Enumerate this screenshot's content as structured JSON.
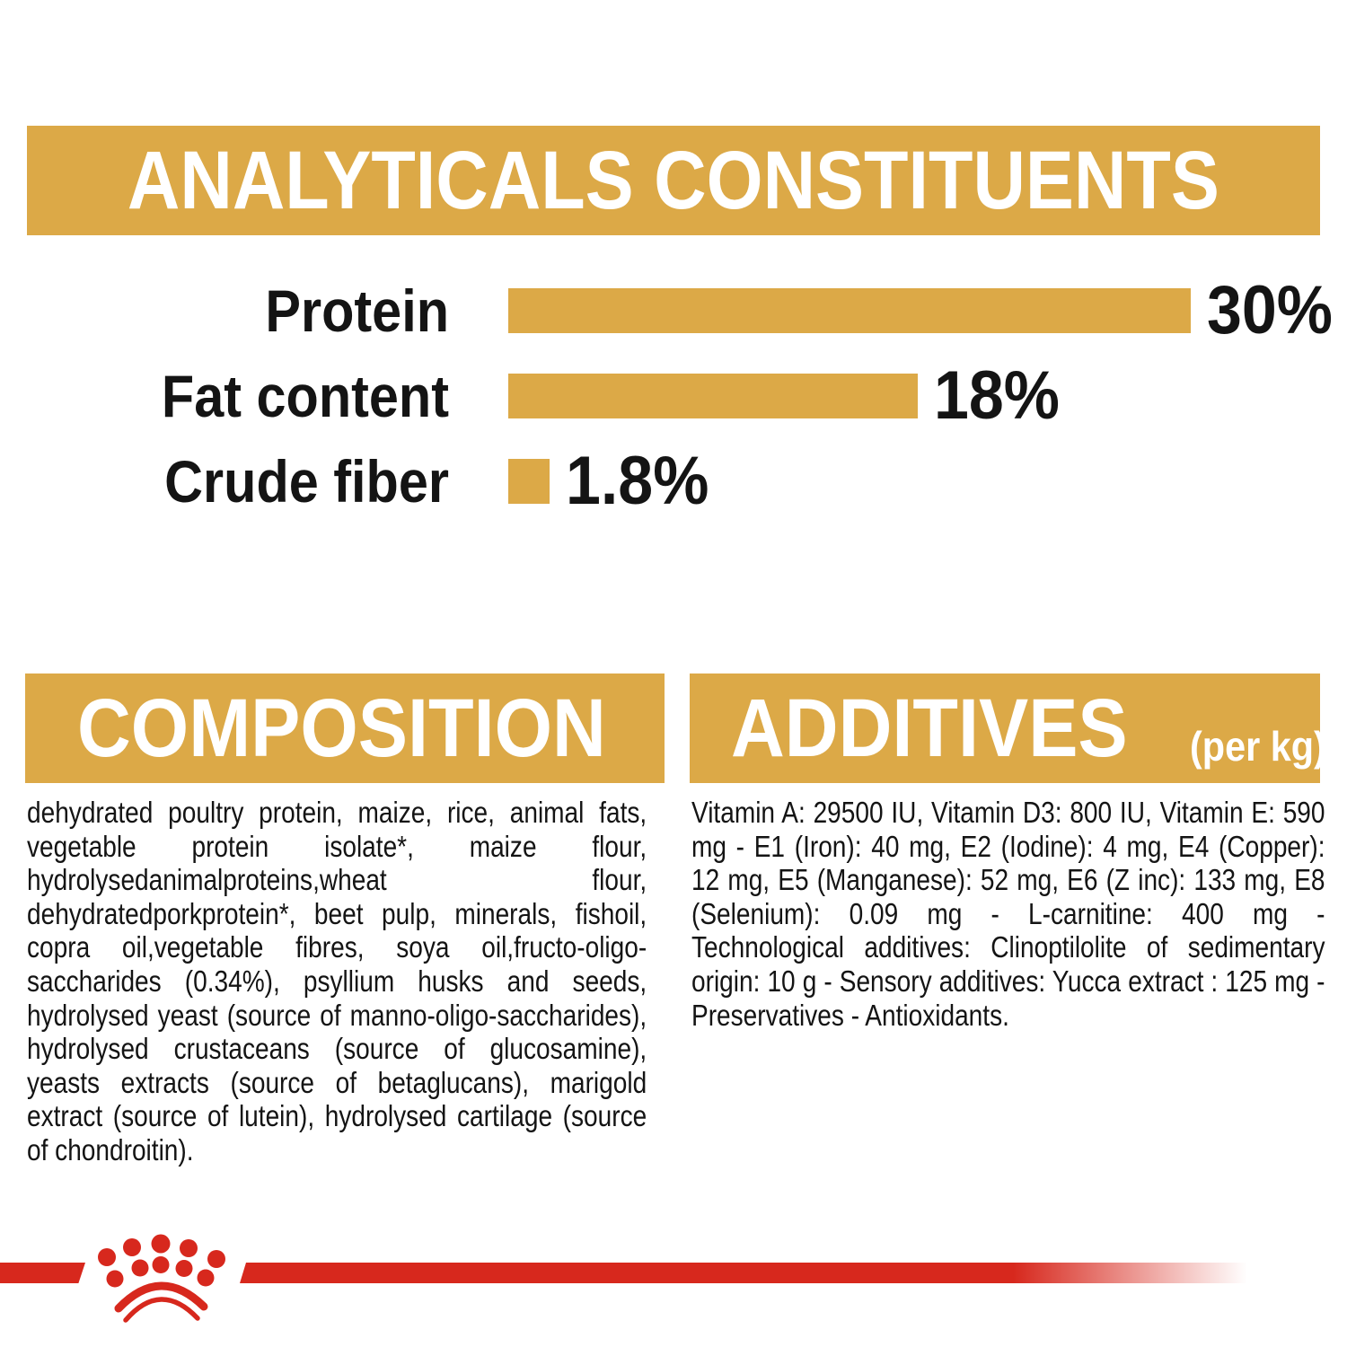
{
  "colors": {
    "gold": "#DCA947",
    "red": "#D7281D",
    "text": "#141414",
    "background": "#FFFFFF"
  },
  "analyticals": {
    "title": "ANALYTICALS CONSTITUENTS"
  },
  "chart_data": {
    "type": "bar",
    "orientation": "horizontal",
    "title": "ANALYTICALS CONSTITUENTS",
    "categories": [
      "Protein",
      "Fat content",
      "Crude fiber"
    ],
    "values": [
      30,
      18,
      1.8
    ],
    "value_labels": [
      "30%",
      "18%",
      "1.8%"
    ],
    "xlim": [
      0,
      30
    ],
    "bar_color": "#DCA947",
    "grid": false,
    "legend": false
  },
  "composition": {
    "title": "COMPOSITION",
    "body": "dehydrated poultry protein, maize, rice, animal fats, vegetable protein isolate*, maize flour, hydrolysedanimalproteins,wheat flour, dehydratedporkprotein*, beet pulp, minerals, fishoil, copra oil,vegetable fibres, soya oil,fructo-oligo-saccharides (0.34%), psyllium husks and seeds, hydrolysed yeast (source of manno-oligo-saccharides), hydrolysed crustaceans (source of glucosamine), yeasts extracts (source of betaglucans), marigold extract (source of lutein), hydrolysed cartilage (source of chondroitin)."
  },
  "additives": {
    "title": "ADDITIVES",
    "suffix": "(per kg)",
    "body": "Vitamin A: 29500 IU, Vitamin D3: 800 IU, Vitamin E: 590 mg - E1 (Iron): 40 mg, E2 (Iodine): 4 mg, E4 (Copper): 12 mg, E5 (Manganese): 52 mg, E6 (Z inc): 133 mg, E8 (Selenium): 0.09 mg - L-carnitine: 400 mg - Technological additives: Clinoptilolite of sedimentary origin: 10 g - Sensory additives: Yucca extract : 125 mg - Preservatives - Antioxidants."
  },
  "footer": {
    "brand_icon": "royal-canin-crown-icon"
  }
}
